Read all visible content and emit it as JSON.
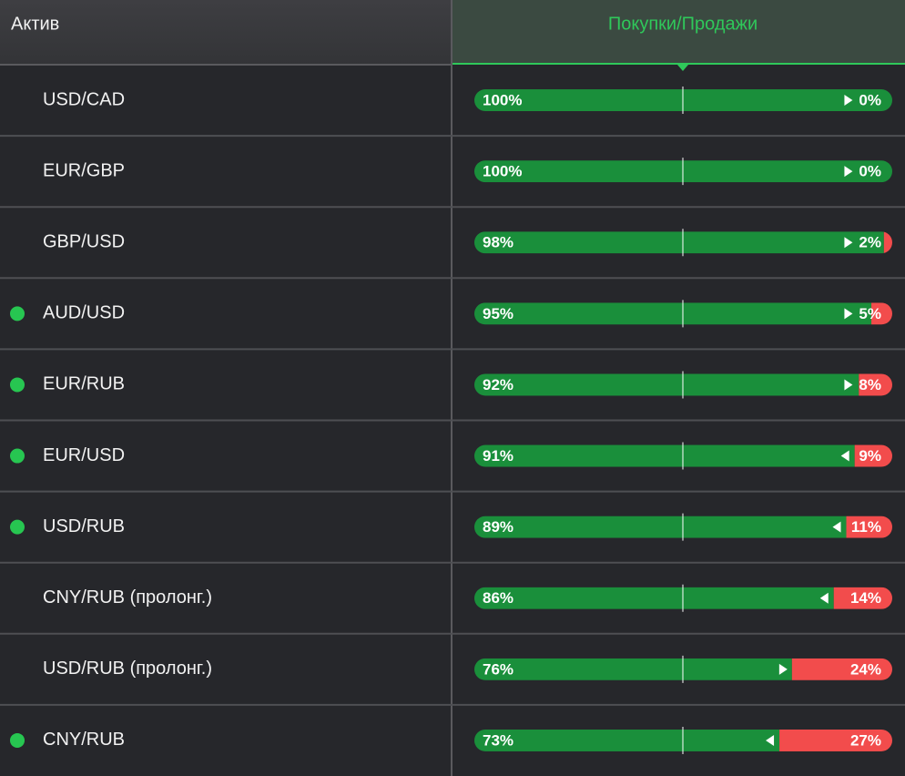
{
  "header": {
    "asset": "Актив",
    "ratio": "Покупки/Продажи"
  },
  "rows": [
    {
      "asset": "USD/CAD",
      "online": false,
      "buy": 100,
      "sell": 0,
      "buy_label": "100%",
      "sell_label": "0%",
      "arrow": "right"
    },
    {
      "asset": "EUR/GBP",
      "online": false,
      "buy": 100,
      "sell": 0,
      "buy_label": "100%",
      "sell_label": "0%",
      "arrow": "right"
    },
    {
      "asset": "GBP/USD",
      "online": false,
      "buy": 98,
      "sell": 2,
      "buy_label": "98%",
      "sell_label": "2%",
      "arrow": "right"
    },
    {
      "asset": "AUD/USD",
      "online": true,
      "buy": 95,
      "sell": 5,
      "buy_label": "95%",
      "sell_label": "5%",
      "arrow": "right"
    },
    {
      "asset": "EUR/RUB",
      "online": true,
      "buy": 92,
      "sell": 8,
      "buy_label": "92%",
      "sell_label": "8%",
      "arrow": "right"
    },
    {
      "asset": "EUR/USD",
      "online": true,
      "buy": 91,
      "sell": 9,
      "buy_label": "91%",
      "sell_label": "9%",
      "arrow": "left"
    },
    {
      "asset": "USD/RUB",
      "online": true,
      "buy": 89,
      "sell": 11,
      "buy_label": "89%",
      "sell_label": "11%",
      "arrow": "left"
    },
    {
      "asset": "CNY/RUB (пролонг.)",
      "online": false,
      "buy": 86,
      "sell": 14,
      "buy_label": "86%",
      "sell_label": "14%",
      "arrow": "left"
    },
    {
      "asset": "USD/RUB (пролонг.)",
      "online": false,
      "buy": 76,
      "sell": 24,
      "buy_label": "76%",
      "sell_label": "24%",
      "arrow": "right"
    },
    {
      "asset": "CNY/RUB",
      "online": true,
      "buy": 73,
      "sell": 27,
      "buy_label": "73%",
      "sell_label": "27%",
      "arrow": "left"
    }
  ]
}
